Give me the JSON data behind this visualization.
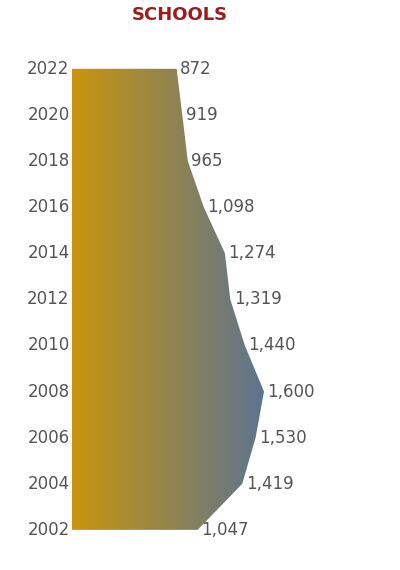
{
  "years": [
    2022,
    2020,
    2018,
    2016,
    2014,
    2012,
    2010,
    2008,
    2006,
    2004,
    2002
  ],
  "values": [
    872,
    919,
    965,
    1098,
    1274,
    1319,
    1440,
    1600,
    1530,
    1419,
    1047
  ],
  "title": "SCHOOLS",
  "title_color": "#9b1c1c",
  "title_fontsize": 13,
  "value_labels": [
    "872",
    "919",
    "965",
    "1,098",
    "1,274",
    "1,319",
    "1,440",
    "1,600",
    "1,530",
    "1,419",
    "1,047"
  ],
  "year_labels": [
    "2022",
    "2020",
    "2018",
    "2016",
    "2014",
    "2012",
    "2010",
    "2008",
    "2006",
    "2004",
    "2002"
  ],
  "label_color": "#555555",
  "label_fontsize": 12,
  "background_color": "#ffffff",
  "color_left": "#C9950C",
  "color_right": "#5070A0",
  "max_value": 1800
}
